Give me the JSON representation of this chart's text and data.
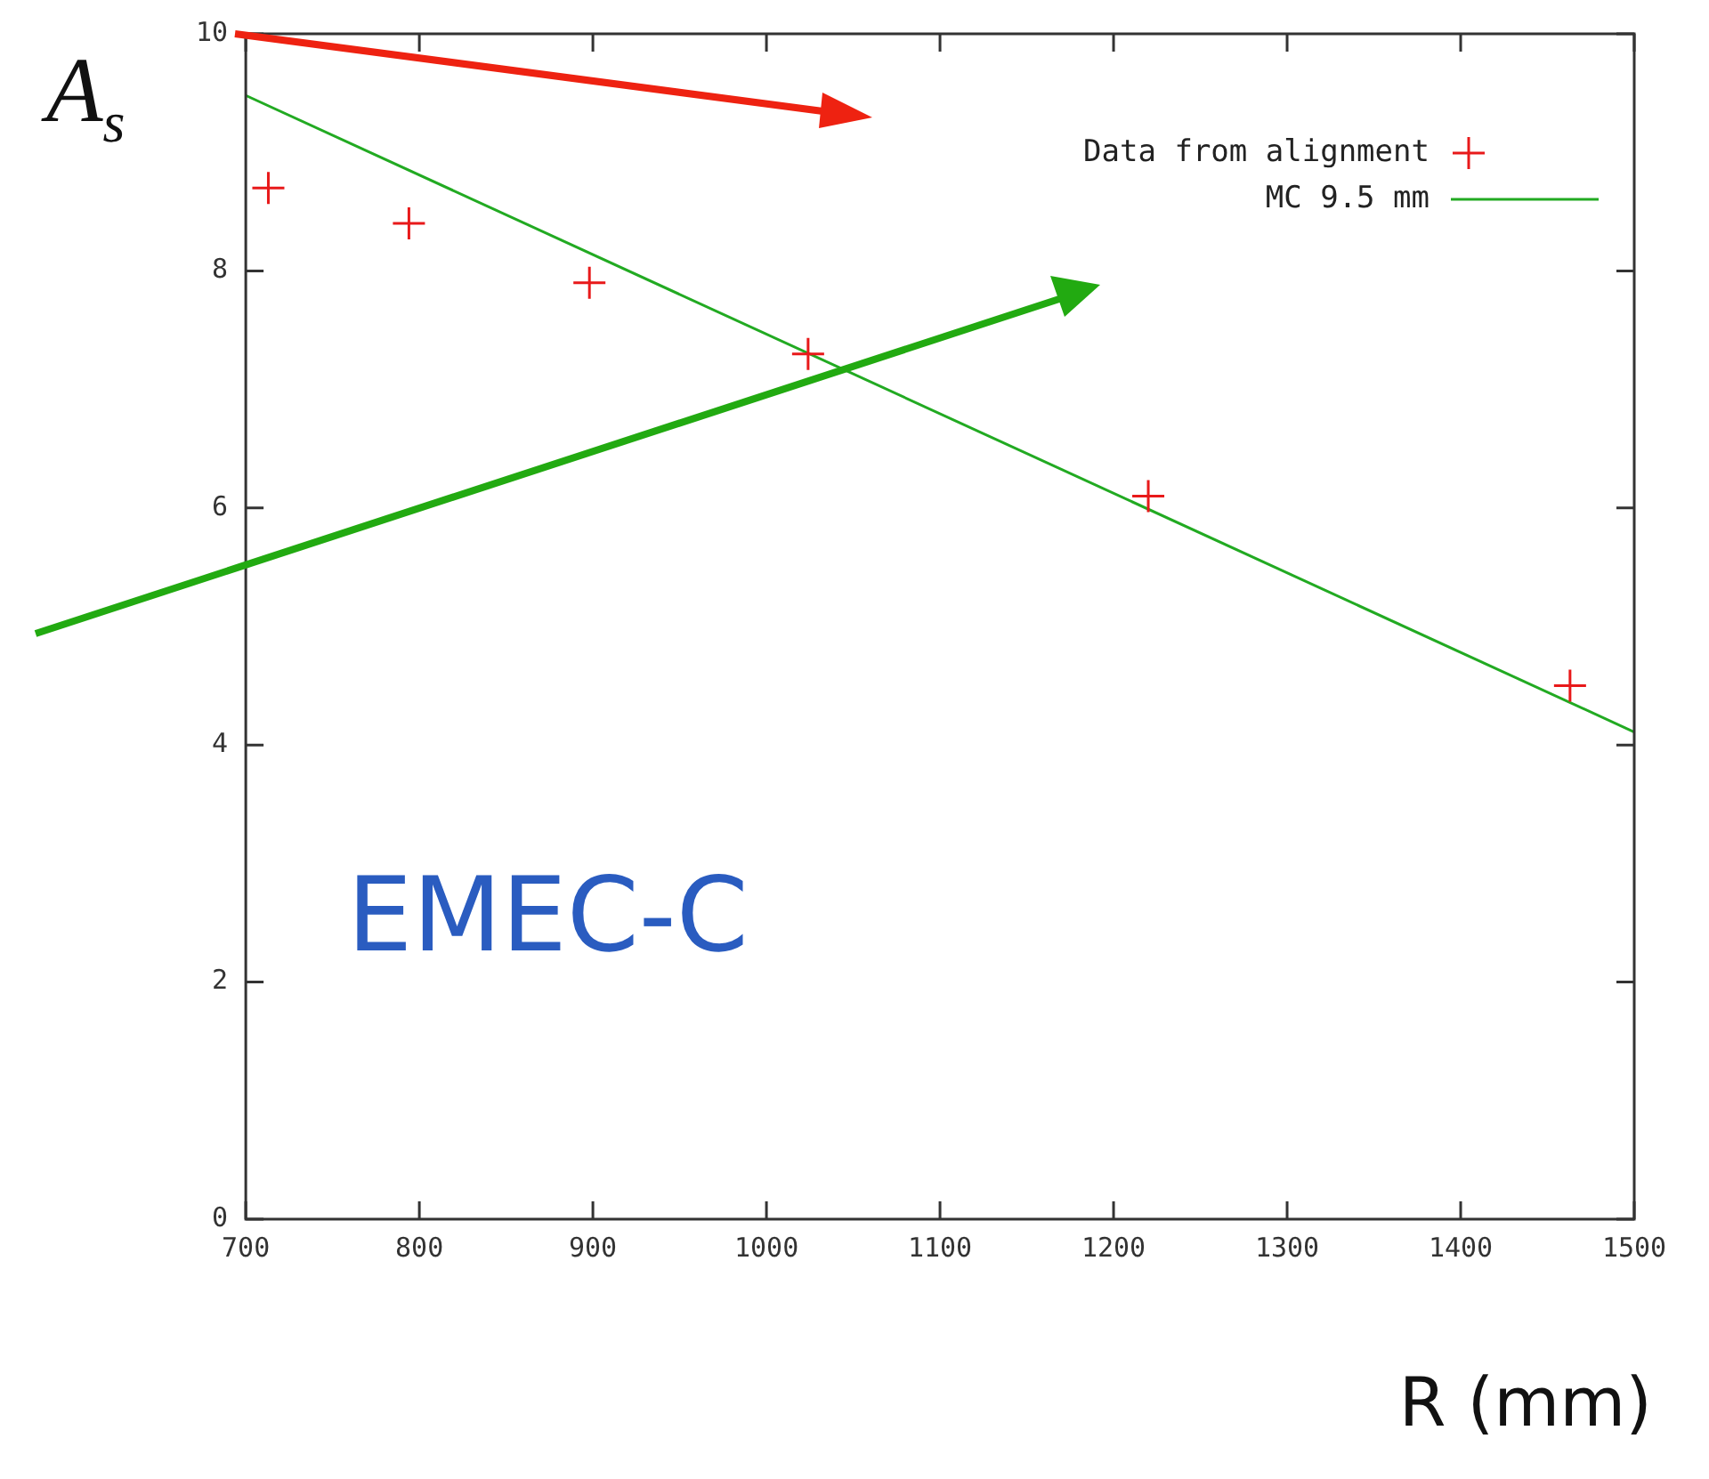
{
  "chart_data": {
    "type": "scatter",
    "xlabel": "R (mm)",
    "ylabel": "A$_{s}$",
    "annotations": [
      "EMEC-C"
    ],
    "xlim": [
      700,
      1500
    ],
    "xticks": [
      700,
      800,
      900,
      1000,
      1100,
      1200,
      1300,
      1400,
      1500
    ],
    "ylim": [
      0,
      10
    ],
    "yticks": [
      0,
      2,
      4,
      6,
      8,
      10
    ],
    "grid": false,
    "legend": "top right",
    "series": [
      {
        "name": "Data from alignment",
        "color": "#e8191a",
        "marker": "cross",
        "x": [
          713,
          794,
          898,
          1024,
          1220,
          1463
        ],
        "values": [
          8.7,
          8.4,
          7.9,
          7.3,
          6.1,
          4.5
        ]
      },
      {
        "name": "MC 9.5 mm",
        "type": "line",
        "color": "#22aa22",
        "marker": "none",
        "line_style": "solid",
        "x": [
          700,
          1500
        ],
        "values": [
          9.48,
          4.11
        ]
      }
    ]
  }
}
